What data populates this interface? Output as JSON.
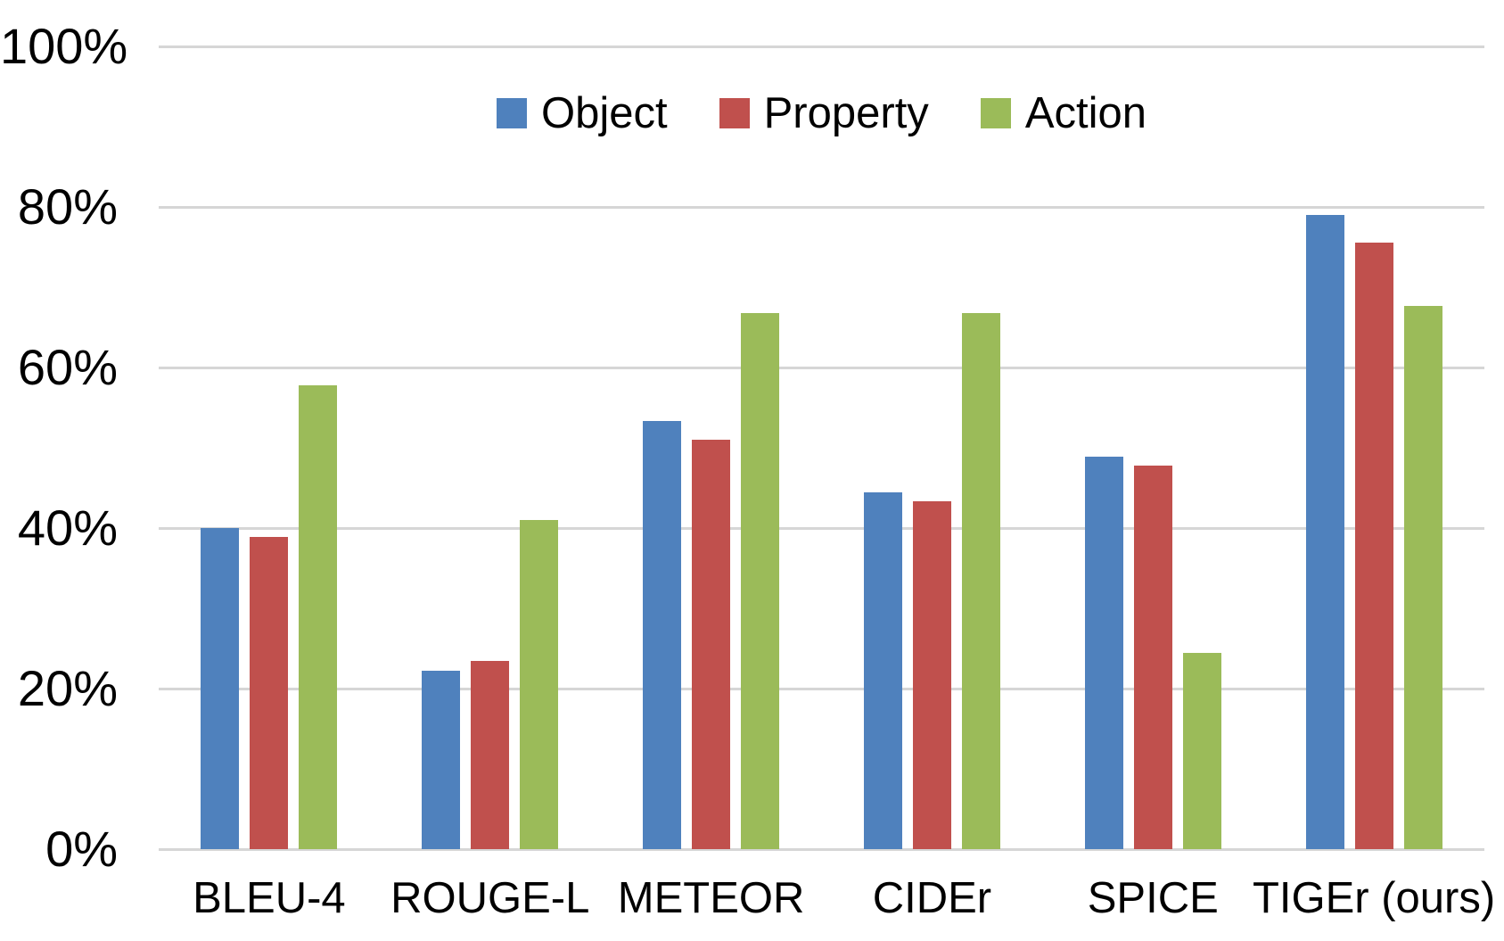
{
  "chart_data": {
    "type": "bar",
    "title": "",
    "xlabel": "",
    "ylabel": "",
    "categories": [
      "BLEU-4",
      "ROUGE-L",
      "METEOR",
      "CIDEr",
      "SPICE",
      "TIGEr (ours)"
    ],
    "series": [
      {
        "name": "Object",
        "color": "#4F81BD",
        "values": [
          40.0,
          22.2,
          53.3,
          44.4,
          48.9,
          79.0
        ]
      },
      {
        "name": "Property",
        "color": "#C0504D",
        "values": [
          38.9,
          23.4,
          51.0,
          43.3,
          47.8,
          75.6
        ]
      },
      {
        "name": "Action",
        "color": "#9BBB59",
        "values": [
          57.8,
          41.0,
          66.8,
          66.8,
          24.5,
          67.7
        ]
      }
    ],
    "y_axis": {
      "min": 0,
      "max": 100,
      "tick_interval": 20,
      "tick_labels": [
        "0%",
        "20%",
        "40%",
        "60%",
        "80%",
        "100%"
      ]
    },
    "legend": {
      "position": "top",
      "entries": [
        "Object",
        "Property",
        "Action"
      ]
    },
    "grid": true,
    "colors": {
      "background": "#FFFFFF",
      "gridline": "#D6D6D6",
      "text": "#000000"
    }
  }
}
